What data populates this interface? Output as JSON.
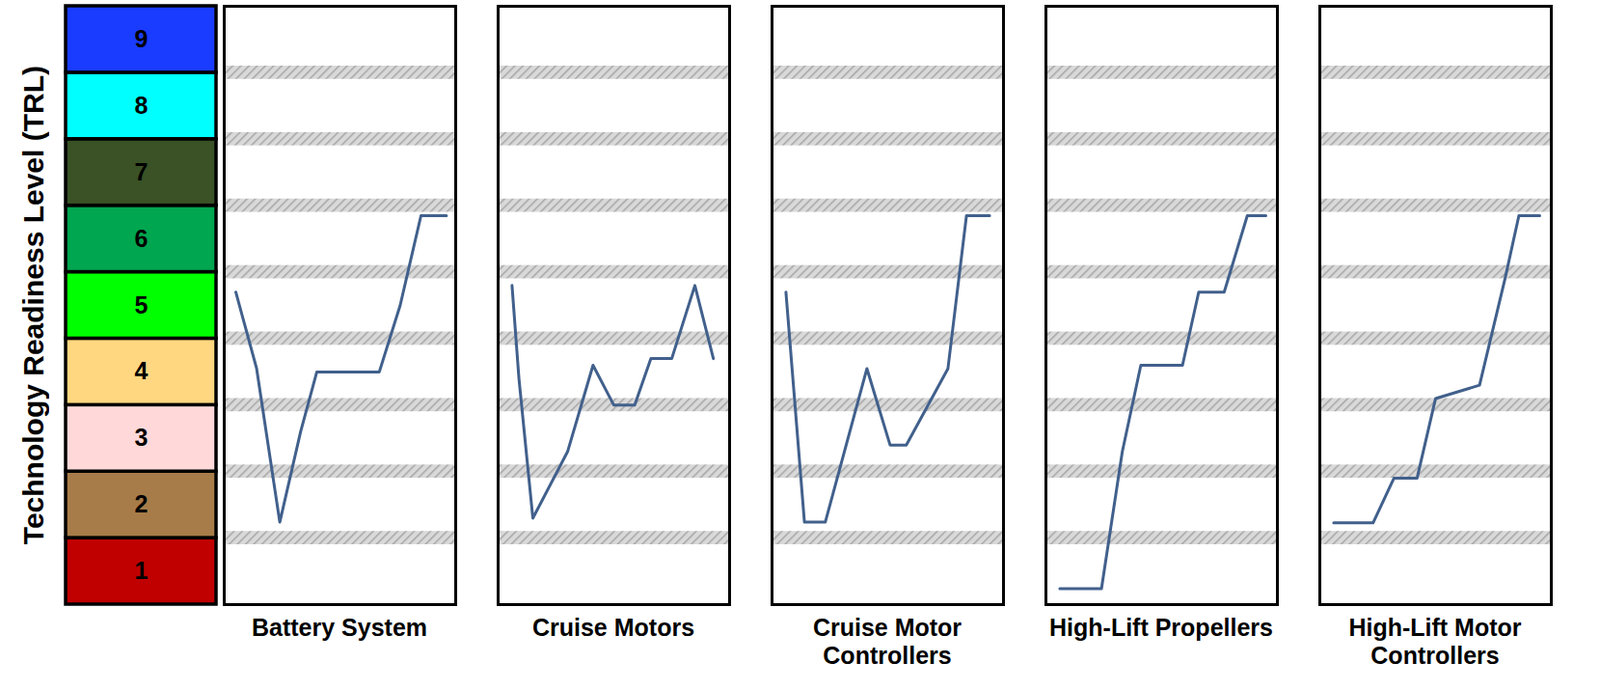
{
  "chart_data": {
    "type": "line",
    "ylabel": "Technology Readiness Level (TRL)",
    "ylim": [
      0.5,
      9.5
    ],
    "yticks": [
      1,
      2,
      3,
      4,
      5,
      6,
      7,
      8,
      9
    ],
    "level_colors": [
      "#c00000",
      "#a87c48",
      "#ffd9d9",
      "#ffd780",
      "#00ff00",
      "#00a650",
      "#3a5226",
      "#00ffff",
      "#1a3cff"
    ],
    "xlim": [
      0,
      100
    ],
    "tick_labels": "y",
    "color": "#41608c",
    "panels": [
      {
        "title": "Battery System",
        "x": [
          5,
          14,
          24,
          33,
          40,
          67,
          76,
          85,
          96
        ],
        "values": [
          5.2,
          4.05,
          1.74,
          3.1,
          4.0,
          4.0,
          5.0,
          6.35,
          6.35
        ]
      },
      {
        "title": "Cruise Motors",
        "x": [
          6,
          9,
          15,
          30,
          41,
          50,
          59,
          66,
          75,
          85,
          93
        ],
        "values": [
          5.3,
          3.9,
          1.8,
          2.8,
          4.1,
          3.5,
          3.5,
          4.2,
          4.2,
          5.3,
          4.2
        ]
      },
      {
        "title": "Cruise Motor Controllers",
        "x": [
          6,
          14,
          23,
          41,
          51,
          58,
          76,
          84,
          94
        ],
        "values": [
          5.2,
          1.74,
          1.74,
          4.05,
          2.9,
          2.9,
          4.05,
          6.35,
          6.35
        ]
      },
      {
        "title": "High-Lift Propellers",
        "x": [
          6,
          24,
          33,
          41,
          59,
          66,
          77,
          87,
          95
        ],
        "values": [
          0.74,
          0.74,
          2.8,
          4.1,
          4.1,
          5.2,
          5.2,
          6.35,
          6.35
        ]
      },
      {
        "title": "High-Lift Motor Controllers",
        "x": [
          6,
          23,
          32,
          42,
          50,
          69,
          80,
          86,
          95
        ],
        "values": [
          1.73,
          1.73,
          2.4,
          2.4,
          3.6,
          3.8,
          5.4,
          6.35,
          6.35
        ]
      }
    ]
  }
}
